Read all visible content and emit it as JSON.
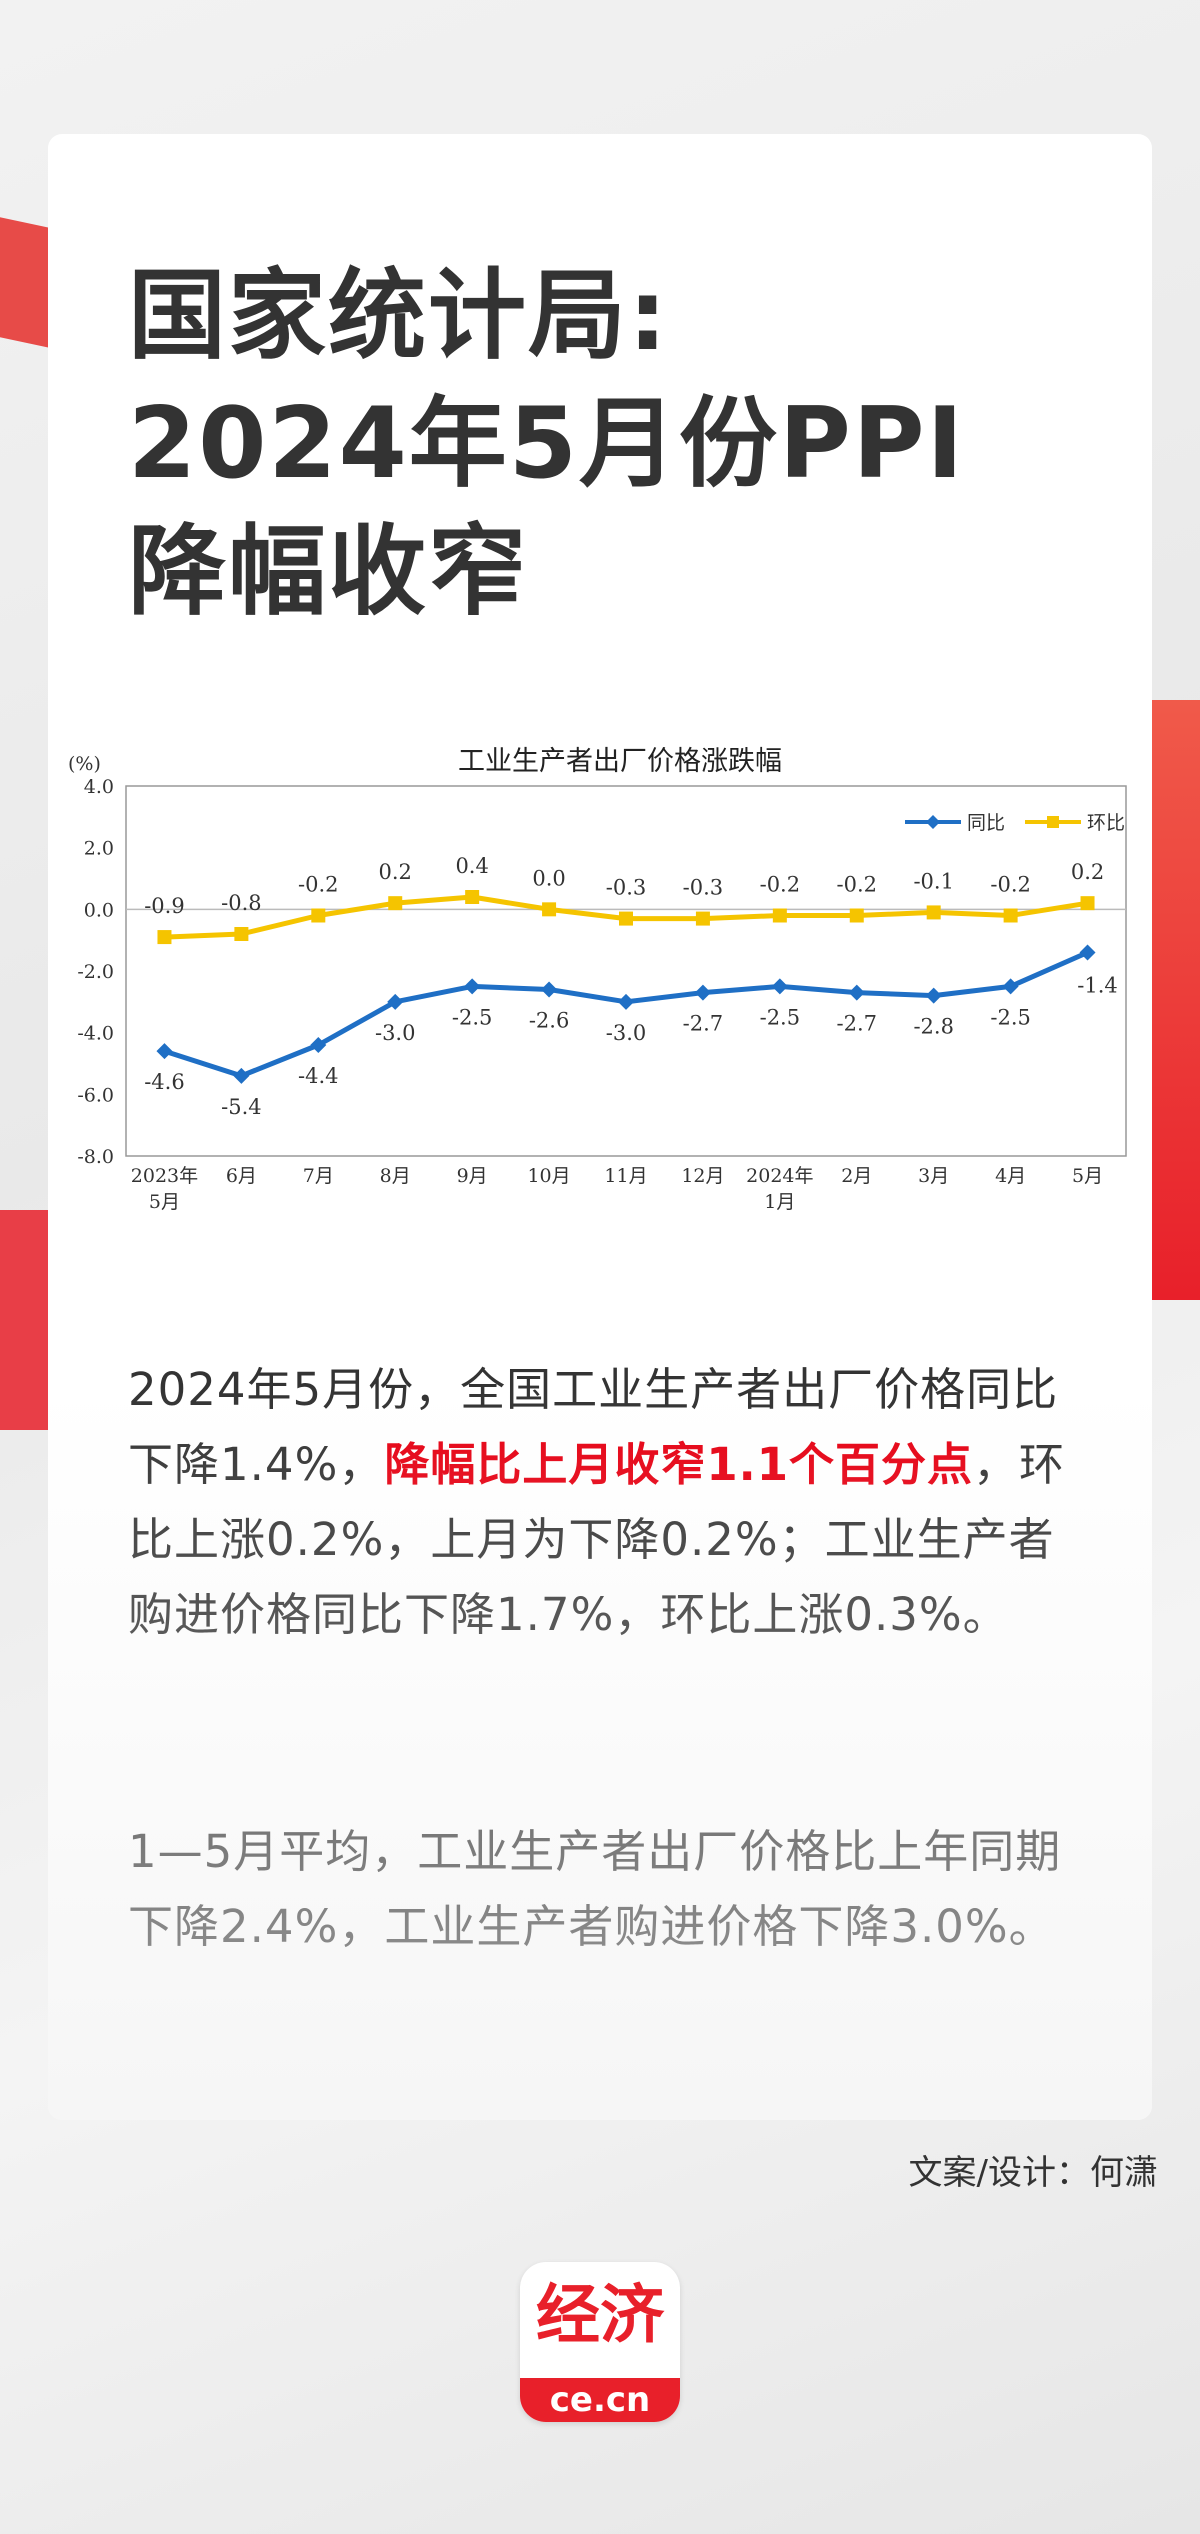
{
  "title_lines": [
    "国家统计局:",
    "2024年5月份PPI",
    "降幅收窄"
  ],
  "paragraph1": {
    "before": "2024年5月份，全国工业生产者出厂价格同比下降1.4%，",
    "highlight": "降幅比上月收窄1.1个百分点",
    "after": "，环比上涨0.2%，上月为下降0.2%；工业生产者购进价格同比下降1.7%，环比上涨0.3%。"
  },
  "paragraph2": "1—5月平均，工业生产者出厂价格比上年同期下降2.4%，工业生产者购进价格下降3.0%。",
  "credit": "文案/设计：何潇",
  "logo": {
    "mark": "经济",
    "domain": "ce.cn"
  },
  "colors": {
    "accent_red": "#e60012",
    "series_yoy": "#1f6fc5",
    "series_mom": "#f5c400"
  },
  "chart_data": {
    "type": "line",
    "title": "工业生产者出厂价格涨跌幅",
    "ylabel": "(%)",
    "ylim": [
      -8.0,
      4.0
    ],
    "yticks": [
      "4.0",
      "2.0",
      "0.0",
      "-2.0",
      "-4.0",
      "-6.0",
      "-8.0"
    ],
    "categories": [
      [
        "2023年",
        "5月"
      ],
      [
        "6月"
      ],
      [
        "7月"
      ],
      [
        "8月"
      ],
      [
        "9月"
      ],
      [
        "10月"
      ],
      [
        "11月"
      ],
      [
        "12月"
      ],
      [
        "2024年",
        "1月"
      ],
      [
        "2月"
      ],
      [
        "3月"
      ],
      [
        "4月"
      ],
      [
        "5月"
      ]
    ],
    "series": [
      {
        "name": "同比",
        "color": "#1f6fc5",
        "values": [
          -4.6,
          -5.4,
          -4.4,
          -3.0,
          -2.5,
          -2.6,
          -3.0,
          -2.7,
          -2.5,
          -2.7,
          -2.8,
          -2.5,
          -1.4
        ],
        "labels": [
          "-4.6",
          "-5.4",
          "-4.4",
          "-3.0",
          "-2.5",
          "-2.6",
          "-3.0",
          "-2.7",
          "-2.5",
          "-2.7",
          "-2.8",
          "-2.5",
          "-1.4"
        ]
      },
      {
        "name": "环比",
        "color": "#f5c400",
        "values": [
          -0.9,
          -0.8,
          -0.2,
          0.2,
          0.4,
          0.0,
          -0.3,
          -0.3,
          -0.2,
          -0.2,
          -0.1,
          -0.2,
          0.2
        ],
        "labels": [
          "-0.9",
          "-0.8",
          "-0.2",
          "0.2",
          "0.4",
          "0.0",
          "-0.3",
          "-0.3",
          "-0.2",
          "-0.2",
          "-0.1",
          "-0.2",
          "0.2"
        ]
      }
    ],
    "legend": "top-right",
    "grid": false
  }
}
